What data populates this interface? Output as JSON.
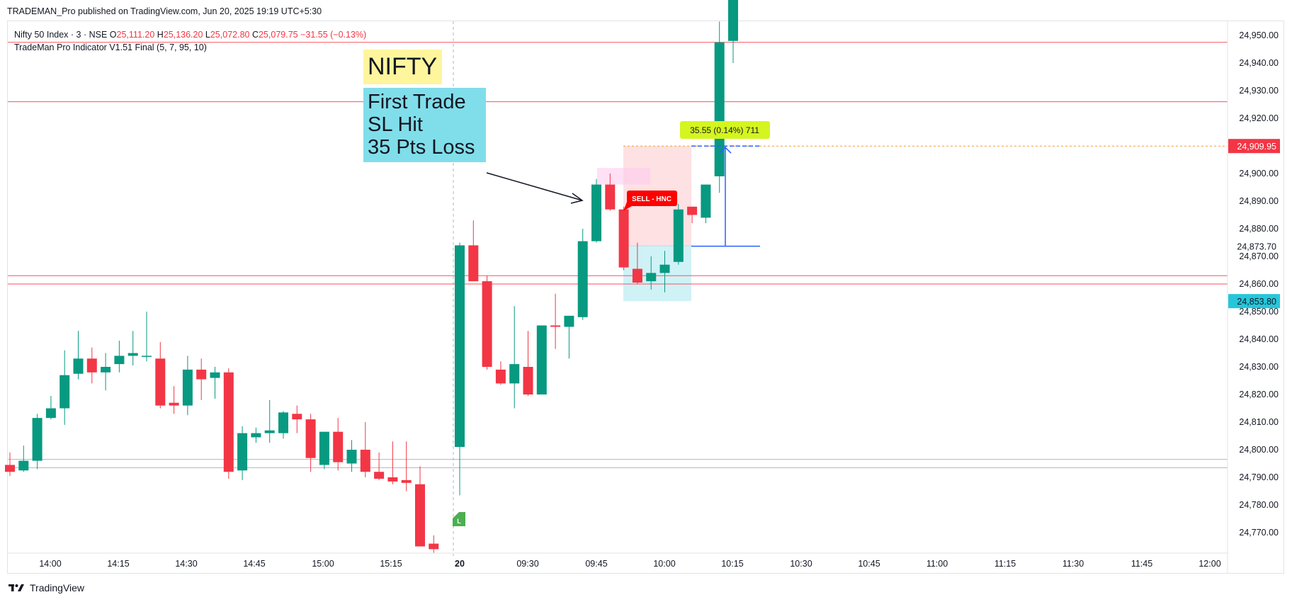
{
  "header": {
    "published": "TRADEMAN_Pro published on TradingView.com, Jun 20, 2025 19:19 UTC+5:30"
  },
  "legend": {
    "symbol": "Nifty 50 Index · 3 · NSE",
    "o_label": "O",
    "o_value": "25,111.20",
    "h_label": "H",
    "h_value": "25,136.20",
    "l_label": "L",
    "l_value": "25,072.80",
    "c_label": "C",
    "c_value": "25,079.75",
    "change": "−31.55 (−0.13%)",
    "indicator": "TradeMan Pro Indicator V1.51 Final (5, 7, 95, 10)"
  },
  "annotations": {
    "nifty_label": "NIFTY",
    "trade_note_lines": [
      "First Trade",
      "SL Hit",
      "35 Pts Loss"
    ],
    "sell_tag": "SELL - HNC",
    "long_marker": "L",
    "measure_label": "35.55 (0.14%) 711"
  },
  "footer": {
    "brand": "TradingView"
  },
  "colors": {
    "up": "#089981",
    "down": "#f23645",
    "level_line": "#f7525f",
    "grey_line": "#b2b5be",
    "measure_bg": "#d4f51f",
    "price_tag_red": "#f23645",
    "price_tag_cyan": "#26c6da",
    "measure_blue": "#2962ff"
  },
  "chart_data": {
    "type": "candlestick",
    "y_ticks": [
      "24,950.00",
      "24,940.00",
      "24,930.00",
      "24,920.00",
      "24,900.00",
      "24,890.00",
      "24,880.00",
      "24,870.00",
      "24,860.00",
      "24,850.00",
      "24,840.00",
      "24,830.00",
      "24,820.00",
      "24,810.00",
      "24,800.00",
      "24,790.00",
      "24,780.00",
      "24,770.00"
    ],
    "x_ticks": [
      "14:00",
      "14:15",
      "14:30",
      "14:45",
      "15:00",
      "15:15",
      "20",
      "09:30",
      "09:45",
      "10:00",
      "10:15",
      "10:30",
      "10:45",
      "11:00",
      "11:15",
      "11:30",
      "11:45",
      "12:00"
    ],
    "price_tags": {
      "red": "24,909.95",
      "cyan": "24,853.80",
      "plain": "24,873.70"
    },
    "horizontal_levels": [
      24947.5,
      24926.0,
      24863.0,
      24860.0,
      24796.5,
      24793.5
    ],
    "sl_level": 24909.95,
    "entry_level": 24873.7,
    "candles": [
      [
        24794.5,
        24799,
        24790.5,
        24792
      ],
      [
        24792.5,
        24801.5,
        24792,
        24796
      ],
      [
        24796,
        24813,
        24793,
        24811.5
      ],
      [
        24811.5,
        24819.5,
        24811,
        24815
      ],
      [
        24815,
        24836,
        24809,
        24827
      ],
      [
        24827.5,
        24843,
        24825.5,
        24833
      ],
      [
        24833,
        24837,
        24824,
        24828
      ],
      [
        24828,
        24835,
        24821.5,
        24830
      ],
      [
        24831,
        24839.5,
        24828,
        24834
      ],
      [
        24834,
        24843,
        24830.5,
        24835
      ],
      [
        24834,
        24850,
        24832,
        24834
      ],
      [
        24833,
        24839,
        24815,
        24816
      ],
      [
        24817,
        24823,
        24813,
        24816
      ],
      [
        24816,
        24834,
        24812.5,
        24829
      ],
      [
        24829,
        24833,
        24818,
        24825.5
      ],
      [
        24826,
        24830,
        24818.5,
        24828
      ],
      [
        24828,
        24829.5,
        24789.5,
        24792
      ],
      [
        24792.5,
        24808.5,
        24789,
        24806
      ],
      [
        24804.5,
        24808,
        24802.5,
        24806
      ],
      [
        24806,
        24818,
        24802.5,
        24807
      ],
      [
        24806,
        24814,
        24804,
        24813.5
      ],
      [
        24813,
        24816,
        24806,
        24811
      ],
      [
        24811,
        24813,
        24792,
        24797
      ],
      [
        24794.5,
        24806,
        24793,
        24806.5
      ],
      [
        24806.5,
        24811.5,
        24792.5,
        24795.5
      ],
      [
        24795,
        24803.5,
        24792,
        24800
      ],
      [
        24800,
        24810,
        24790,
        24792
      ],
      [
        24792,
        24799,
        24789,
        24789.5
      ],
      [
        24790,
        24803,
        24787.5,
        24788.5
      ],
      [
        24789,
        24803,
        24785,
        24788
      ],
      [
        24787.5,
        24794,
        24765.5,
        24765
      ],
      [
        24766,
        24769,
        24762.5,
        24764
      ],
      [
        24801,
        24875,
        24783.5,
        24874
      ],
      [
        24874,
        24883,
        24861,
        24861
      ],
      [
        24861,
        24863,
        24829,
        24830
      ],
      [
        24829,
        24832,
        24823.5,
        24824
      ],
      [
        24824,
        24852,
        24815,
        24831
      ],
      [
        24830,
        24843,
        24819.5,
        24820
      ],
      [
        24820,
        24845,
        24820,
        24845
      ],
      [
        24845,
        24856.5,
        24836.5,
        24844.5
      ],
      [
        24844.5,
        24848.5,
        24833,
        24848.5
      ],
      [
        24848,
        24880,
        24847,
        24875.5
      ],
      [
        24875.5,
        24898,
        24875,
        24896
      ],
      [
        24896,
        24900,
        24886.5,
        24887
      ],
      [
        24887,
        24888,
        24865,
        24866
      ],
      [
        24865.5,
        24875,
        24860,
        24860.5
      ],
      [
        24861,
        24870,
        24858,
        24864
      ],
      [
        24864,
        24872,
        24857,
        24867
      ],
      [
        24868,
        24889,
        24867,
        24887
      ],
      [
        24888,
        24888,
        24882,
        24885
      ],
      [
        24884,
        24896,
        24882,
        24896
      ],
      [
        24899,
        24955,
        24893,
        24947.5
      ],
      [
        24948,
        24975,
        24940,
        24967
      ]
    ]
  }
}
